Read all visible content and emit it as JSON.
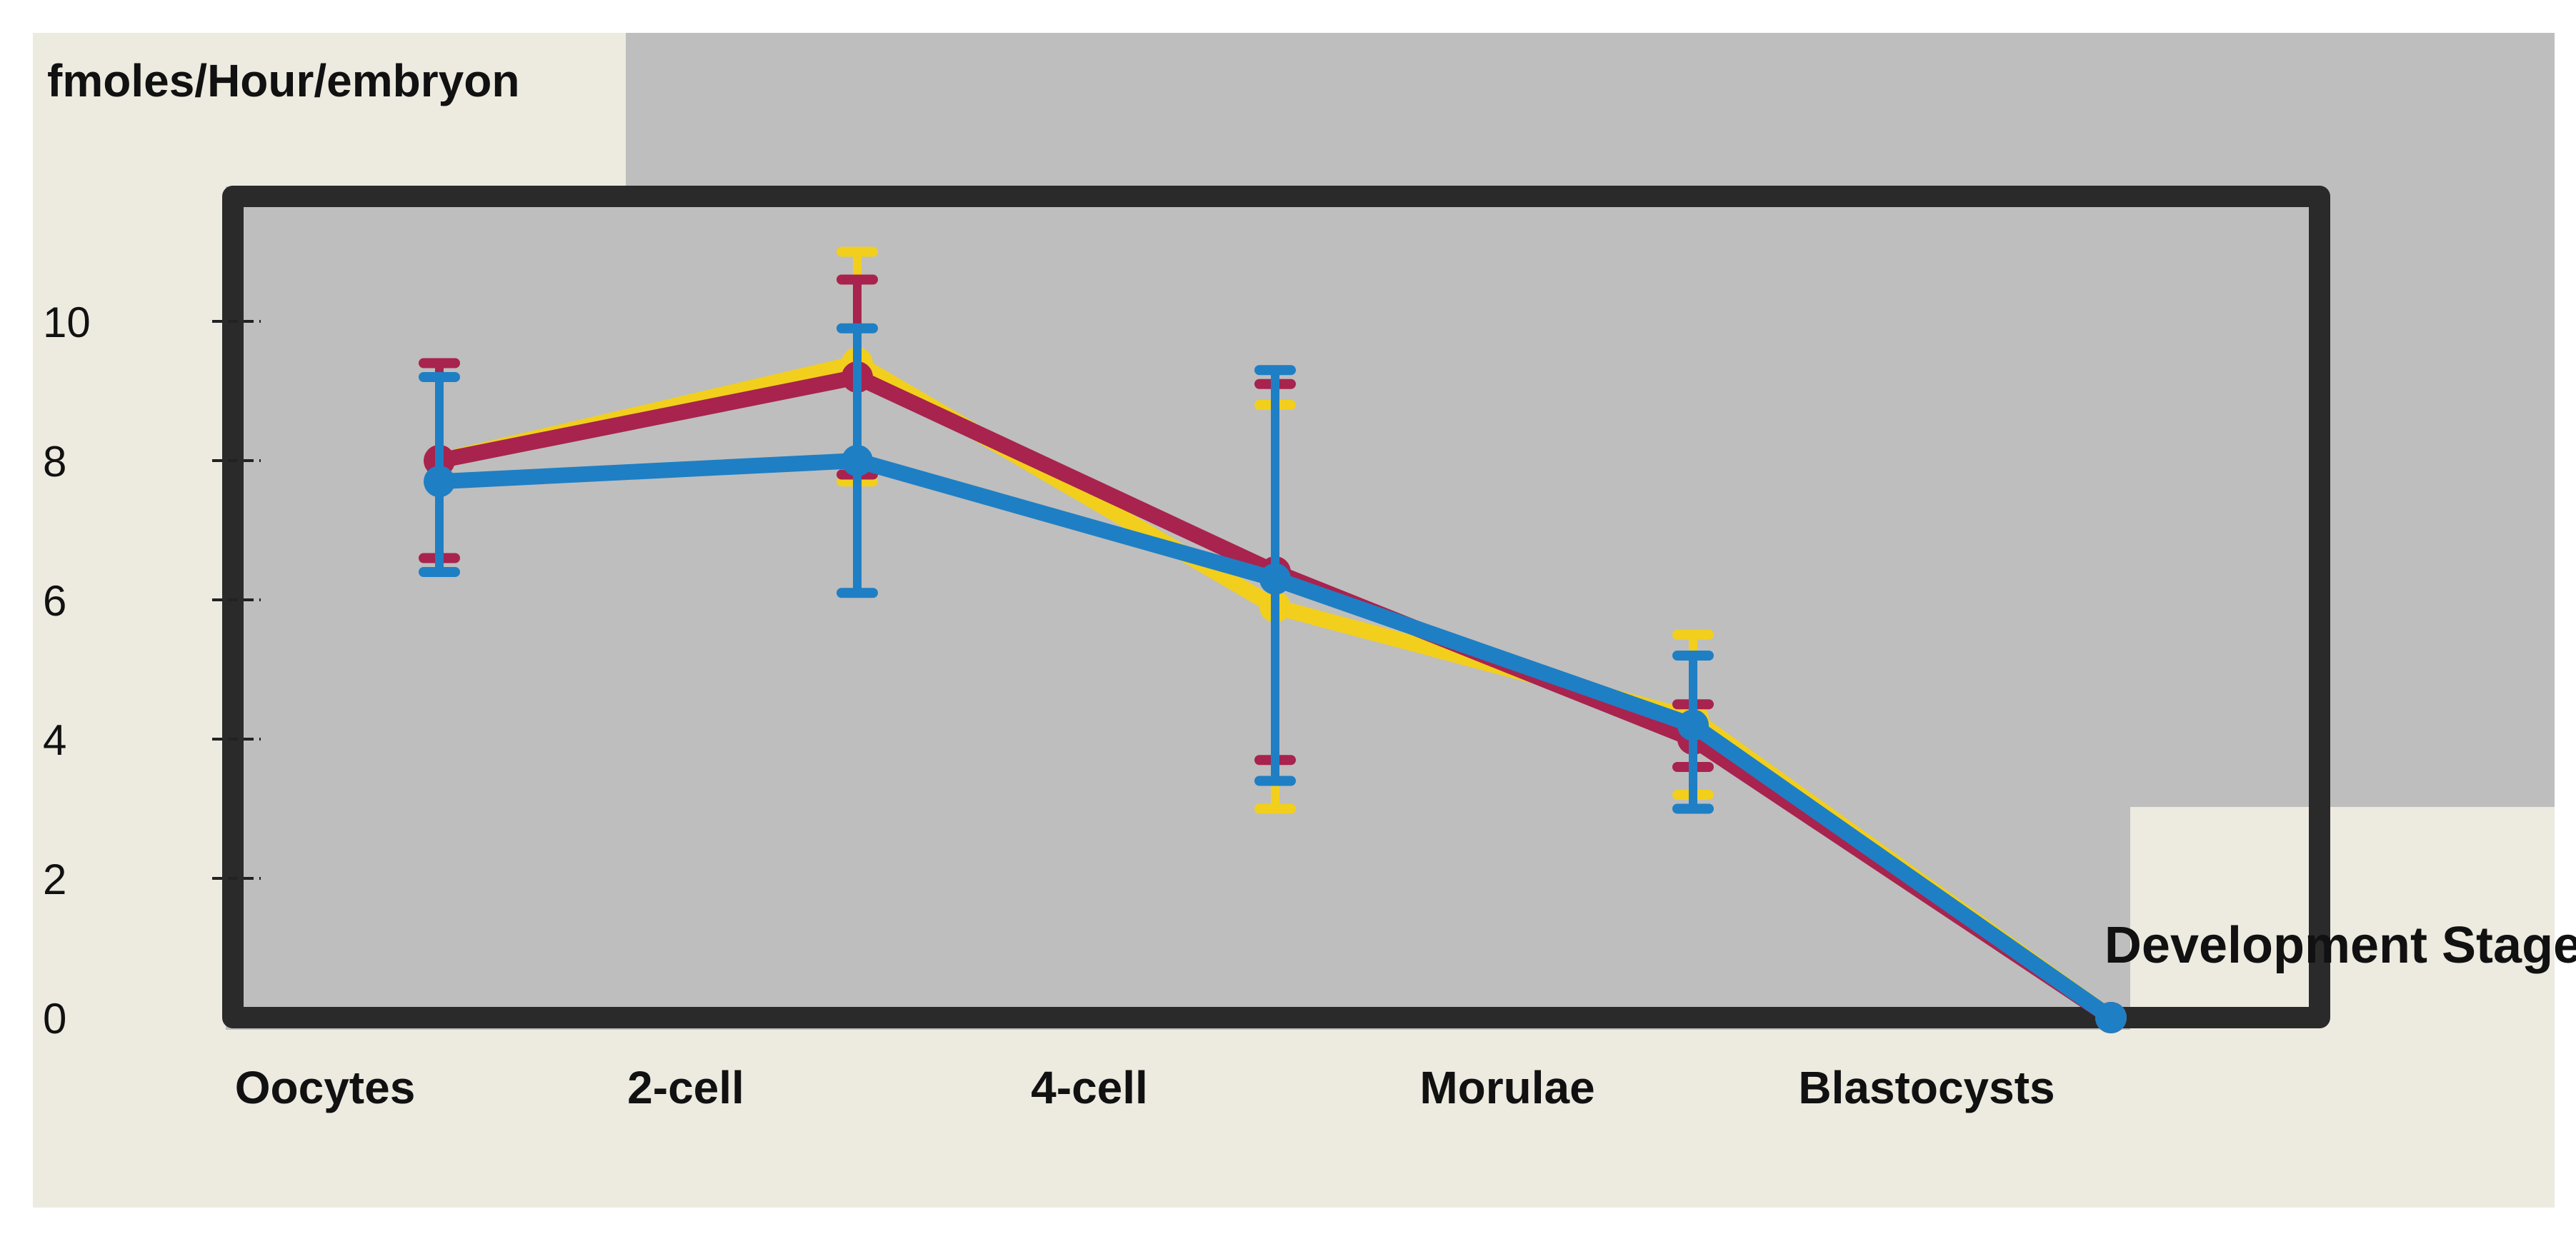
{
  "chart_data": {
    "type": "line",
    "ylabel": "fmoles/Hour/embryon",
    "xlabel": "Development Stage",
    "categories": [
      "Oocytes",
      "2-cell",
      "4-cell",
      "Morulae",
      "Blastocysts"
    ],
    "ylim": [
      0,
      11.5
    ],
    "yticks": [
      "0",
      "2",
      "4",
      "6",
      "8",
      "10"
    ],
    "grid": false,
    "error_bars": true,
    "series": [
      {
        "color": "#f2cf1c",
        "values": [
          8.0,
          9.4,
          5.9,
          4.3,
          0.0
        ],
        "err_low": [
          6.6,
          7.7,
          3.0,
          3.2,
          0.0
        ],
        "err_high": [
          9.4,
          11.0,
          8.8,
          5.5,
          0.0
        ]
      },
      {
        "color": "#a8234e",
        "values": [
          8.0,
          9.2,
          6.4,
          4.0,
          0.0
        ],
        "err_low": [
          6.6,
          7.8,
          3.7,
          3.6,
          0.0
        ],
        "err_high": [
          9.4,
          10.6,
          9.1,
          4.5,
          0.0
        ]
      },
      {
        "color": "#1f7fc4",
        "values": [
          7.7,
          8.0,
          6.3,
          4.2,
          0.0
        ],
        "err_low": [
          6.4,
          6.1,
          3.4,
          3.0,
          0.0
        ],
        "err_high": [
          9.2,
          9.9,
          9.3,
          5.2,
          0.0
        ]
      }
    ]
  }
}
